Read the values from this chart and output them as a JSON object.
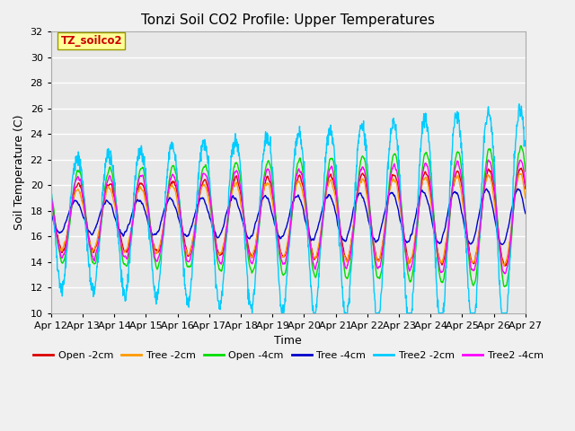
{
  "title": "Tonzi Soil CO2 Profile: Upper Temperatures",
  "xlabel": "Time",
  "ylabel": "Soil Temperature (C)",
  "ylim": [
    10,
    32
  ],
  "yticks": [
    10,
    12,
    14,
    16,
    18,
    20,
    22,
    24,
    26,
    28,
    30,
    32
  ],
  "fig_bg_color": "#f0f0f0",
  "plot_bg_color": "#e8e8e8",
  "series": [
    {
      "label": "Open -2cm",
      "color": "#dd0000"
    },
    {
      "label": "Tree -2cm",
      "color": "#ff9900"
    },
    {
      "label": "Open -4cm",
      "color": "#00dd00"
    },
    {
      "label": "Tree -4cm",
      "color": "#0000cc"
    },
    {
      "label": "Tree2 -2cm",
      "color": "#00ccff"
    },
    {
      "label": "Tree2 -4cm",
      "color": "#ff00ff"
    }
  ],
  "legend_label": "TZ_soilco2",
  "legend_label_color": "#cc0000",
  "legend_box_facecolor": "#ffff99",
  "legend_box_edgecolor": "#999900",
  "n_points": 1440,
  "x_start": 0,
  "x_end": 15,
  "xtick_positions": [
    0,
    1,
    2,
    3,
    4,
    5,
    6,
    7,
    8,
    9,
    10,
    11,
    12,
    13,
    14,
    15
  ],
  "xtick_labels": [
    "Apr 12",
    "Apr 13",
    "Apr 14",
    "Apr 15",
    "Apr 16",
    "Apr 17",
    "Apr 18",
    "Apr 19",
    "Apr 20",
    "Apr 21",
    "Apr 22",
    "Apr 23",
    "Apr 24",
    "Apr 25",
    "Apr 26",
    "Apr 27"
  ],
  "grid_color": "#ffffff",
  "grid_lw": 1.0,
  "title_fontsize": 11,
  "axis_label_fontsize": 9,
  "tick_fontsize": 8,
  "legend_fontsize": 8
}
